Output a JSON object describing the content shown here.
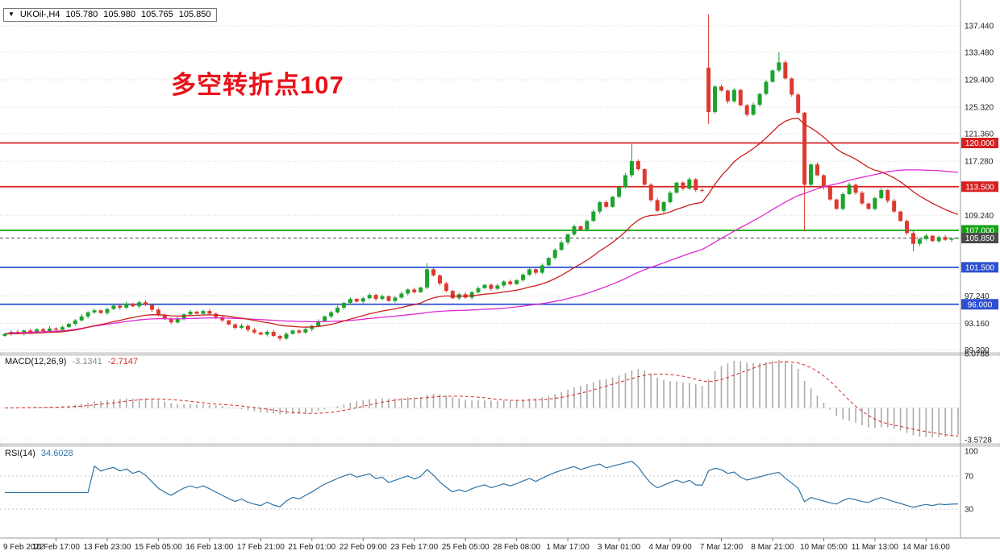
{
  "quote_box": {
    "dropdown_icon": "▼",
    "symbol_period": "UKOil-,H4",
    "open": "105.780",
    "high": "105.980",
    "low": "105.765",
    "close": "105.850"
  },
  "annotation": {
    "text": "多空转折点107",
    "color": "#e8121a"
  },
  "chart_data": {
    "type": "candlestick",
    "symbol": "UKOil-",
    "timeframe": "H4",
    "up_color": "#1ea32e",
    "down_color": "#dc3a30",
    "first_open": 91.3,
    "closes": [
      91.6,
      91.9,
      91.7,
      92.1,
      91.8,
      92.3,
      92.0,
      92.4,
      92.2,
      92.6,
      93.1,
      93.6,
      94.2,
      94.8,
      95.1,
      94.7,
      95.3,
      95.8,
      95.5,
      96.1,
      95.7,
      96.3,
      95.9,
      95.2,
      94.4,
      93.8,
      93.3,
      93.9,
      94.5,
      94.9,
      94.6,
      95.0,
      94.6,
      94.1,
      93.6,
      93.0,
      92.5,
      92.8,
      92.2,
      91.8,
      91.5,
      91.9,
      91.3,
      90.9,
      91.6,
      92.1,
      91.8,
      92.3,
      92.8,
      93.5,
      94.2,
      94.8,
      95.5,
      96.2,
      96.8,
      96.4,
      96.9,
      97.4,
      96.8,
      97.2,
      96.5,
      97.0,
      97.6,
      98.2,
      97.8,
      98.5,
      101.2,
      100.3,
      99.1,
      98.0,
      96.9,
      97.5,
      97.0,
      97.8,
      98.4,
      98.9,
      98.3,
      98.8,
      99.4,
      99.0,
      99.6,
      100.4,
      101.2,
      100.7,
      101.8,
      102.9,
      104.1,
      105.2,
      106.4,
      107.6,
      107.1,
      108.4,
      109.8,
      111.2,
      110.5,
      112.0,
      113.4,
      115.2,
      117.3,
      116.1,
      113.8,
      111.5,
      109.9,
      111.2,
      112.6,
      114.1,
      113.2,
      114.6,
      113.0,
      112.9,
      124.6,
      128.4,
      127.8,
      126.2,
      127.9,
      125.6,
      124.2,
      125.7,
      127.3,
      129.1,
      130.8,
      132.0,
      129.6,
      127.2,
      124.5,
      113.8,
      116.8,
      115.2,
      113.4,
      111.6,
      110.2,
      112.4,
      113.8,
      112.6,
      111.0,
      110.2,
      111.8,
      113.0,
      111.4,
      109.8,
      108.4,
      106.6,
      105.0,
      105.7,
      106.2,
      105.4,
      106.0,
      105.6,
      105.78,
      105.85
    ],
    "overrides": {
      "43": {
        "l": 90.55
      },
      "66": {
        "h": 102.1
      },
      "98": {
        "h": 119.84
      },
      "110": {
        "o": 131.2,
        "h": 139.13,
        "l": 122.8
      },
      "121": {
        "h": 133.55
      },
      "125": {
        "l": 106.9
      },
      "142": {
        "l": 103.9
      },
      "149": {
        "o": 105.78,
        "h": 105.98,
        "l": 105.765
      }
    },
    "moving_averages": [
      {
        "type": "ema",
        "period": 21,
        "color": "#cc1f1f"
      },
      {
        "type": "sma",
        "period": 55,
        "color": "#dd2ad4"
      }
    ],
    "price_scale": {
      "ticks": [
        "137.440",
        "133.480",
        "129.400",
        "125.320",
        "121.360",
        "117.280",
        "109.240",
        "97.240",
        "93.160",
        "89.200"
      ],
      "levels": [
        {
          "label": "120.000",
          "value": 120.0,
          "color": "#d62020",
          "style": "solid"
        },
        {
          "label": "113.500",
          "value": 113.5,
          "color": "#d62020",
          "style": "solid"
        },
        {
          "label": "107.000",
          "value": 107.0,
          "color": "#12a212",
          "style": "solid"
        },
        {
          "label": "105.850",
          "value": 105.85,
          "color": "#4b4b4b",
          "style": "dashed"
        },
        {
          "label": "101.500",
          "value": 101.5,
          "color": "#2d4fd0",
          "style": "solid"
        },
        {
          "label": "96.000",
          "value": 96.0,
          "color": "#2d4fd0",
          "style": "solid"
        }
      ]
    },
    "time_axis": {
      "labels": [
        "9 Feb 2022",
        "10 Feb 17:00",
        "13 Feb 23:00",
        "15 Feb 05:00",
        "16 Feb 13:00",
        "17 Feb 21:00",
        "21 Feb 01:00",
        "22 Feb 09:00",
        "23 Feb 17:00",
        "25 Feb 05:00",
        "28 Feb 08:00",
        "1 Mar 17:00",
        "3 Mar 01:00",
        "4 Mar 09:00",
        "7 Mar 12:00",
        "8 Mar 21:00",
        "10 Mar 05:00",
        "11 Mar 13:00",
        "14 Mar 16:00"
      ]
    },
    "macd": {
      "title": "MACD(12,26,9)",
      "value_main": "-3.1341",
      "value_signal": "-2.7147",
      "params": {
        "fast": 12,
        "slow": 26,
        "signal": 9
      },
      "axis_labels": [
        {
          "text": "6.0788",
          "value": 6.0788
        },
        {
          "text": "-3.5728",
          "value": -3.5728
        }
      ],
      "colors": {
        "hist": "#ababab",
        "signal": "#d22a2a",
        "main_value_text": "#8a8a8a"
      }
    },
    "rsi": {
      "title": "RSI(14)",
      "value": "34.6028",
      "period": 14,
      "color": "#2d74a6",
      "axis_labels": [
        {
          "text": "100",
          "value": 100
        },
        {
          "text": "70",
          "value": 70
        },
        {
          "text": "30",
          "value": 30
        }
      ],
      "levels": [
        70,
        30
      ]
    }
  }
}
